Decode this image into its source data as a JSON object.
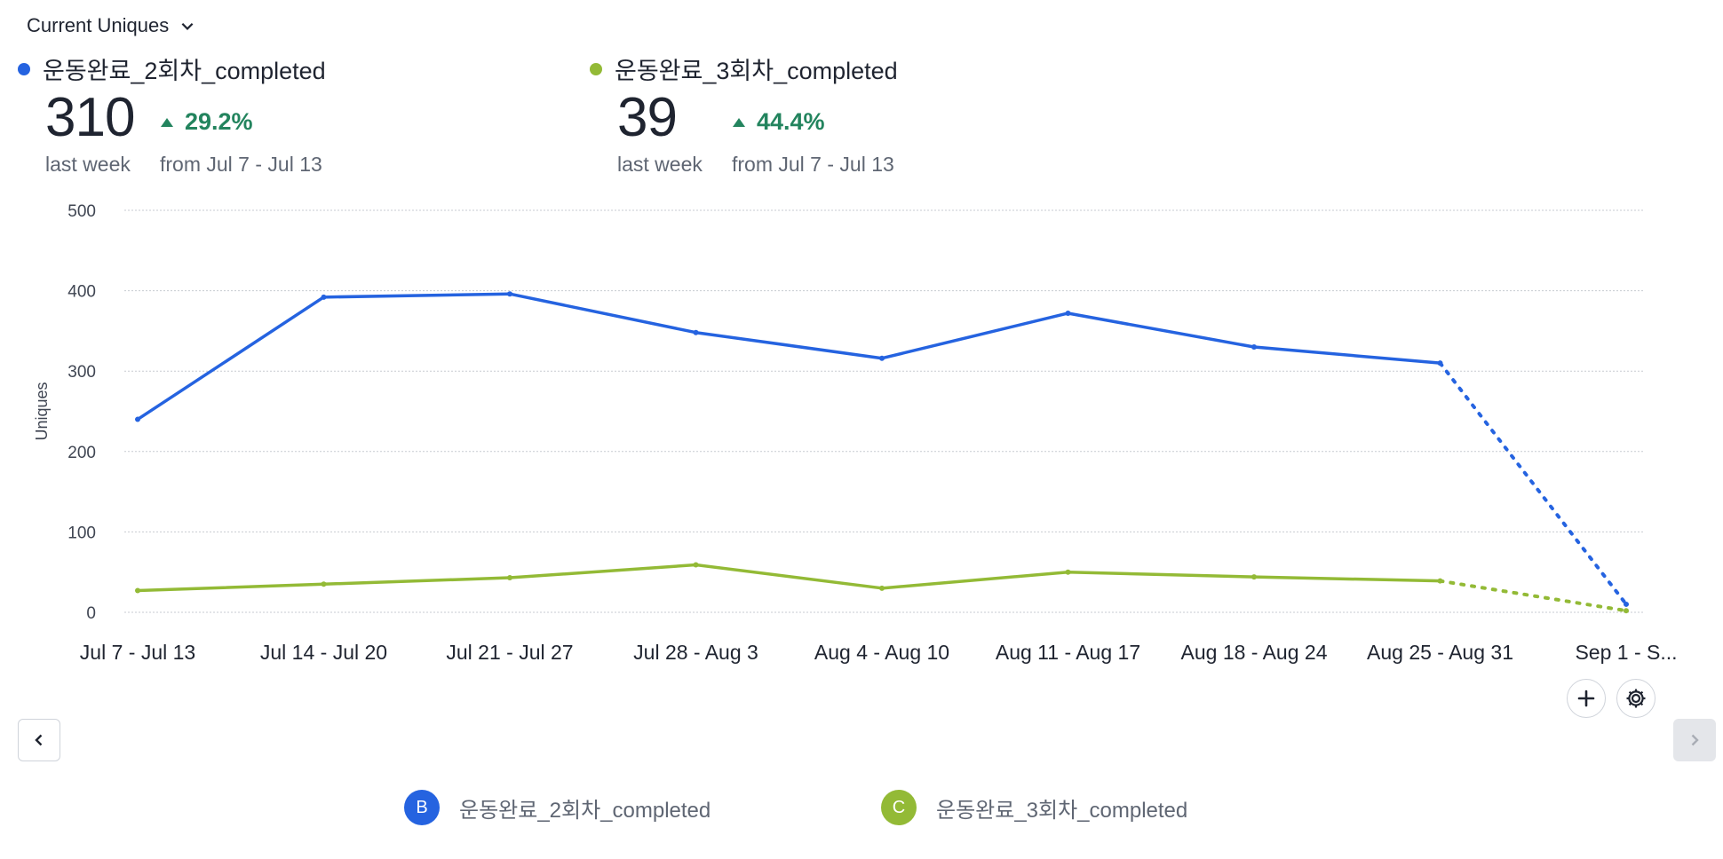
{
  "header": {
    "metric_label": "Current Uniques"
  },
  "summaries": [
    {
      "name": "운동완료_2회차_completed",
      "value": "310",
      "caption": "last week",
      "delta": "29.2%",
      "period": "from Jul 7 - Jul 13",
      "color": "#2563e0"
    },
    {
      "name": "운동완료_3회차_completed",
      "value": "39",
      "caption": "last week",
      "delta": "44.4%",
      "period": "from Jul 7 - Jul 13",
      "color": "#93ba36"
    }
  ],
  "chart_data": {
    "type": "line",
    "ylabel": "Uniques",
    "ylim": [
      0,
      500
    ],
    "yticks": [
      0,
      100,
      200,
      300,
      400,
      500
    ],
    "categories": [
      "Jul 7 - Jul 13",
      "Jul 14 - Jul 20",
      "Jul 21 - Jul 27",
      "Jul 28 - Aug 3",
      "Aug 4 - Aug 10",
      "Aug 11 - Aug 17",
      "Aug 18 - Aug 24",
      "Aug 25 - Aug 31",
      "Sep 1 - S..."
    ],
    "incomplete_from_index": 7,
    "grid": true,
    "series": [
      {
        "name": "운동완료_2회차_completed",
        "badge": "B",
        "color": "#2563e0",
        "values": [
          240,
          392,
          396,
          348,
          316,
          372,
          330,
          310,
          10
        ]
      },
      {
        "name": "운동완료_3회차_completed",
        "badge": "C",
        "color": "#93ba36",
        "values": [
          27,
          35,
          43,
          59,
          30,
          50,
          44,
          39,
          2
        ]
      }
    ]
  }
}
